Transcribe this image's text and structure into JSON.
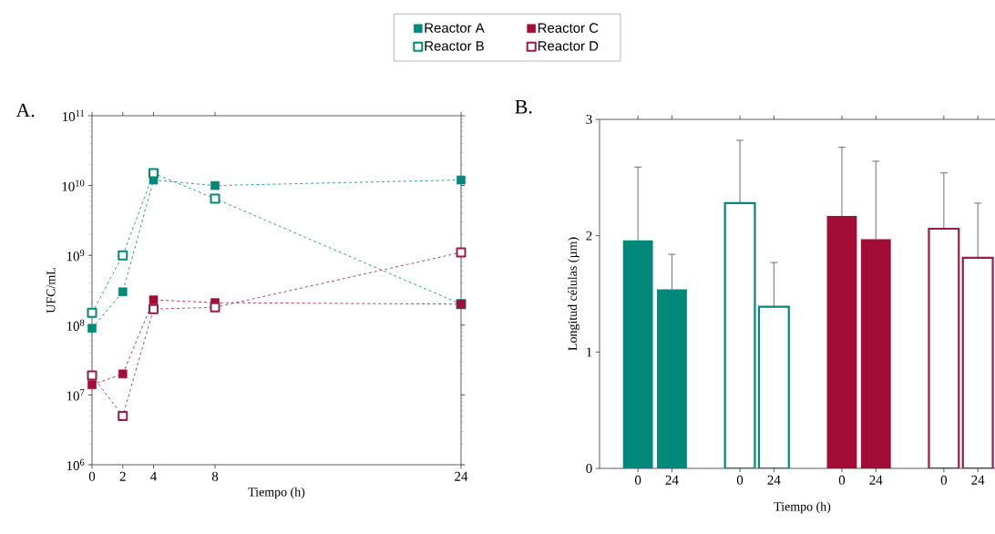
{
  "chart_data": [
    {
      "type": "line",
      "title": "A.",
      "xlabel": "Tiempo (h)",
      "ylabel": "UFC/mL",
      "log": "y",
      "marker": "square",
      "line_style": "dashed",
      "legend": "top",
      "x": [
        0,
        2,
        4,
        8,
        24
      ],
      "xlim": [
        0,
        24
      ],
      "xticks": [
        0,
        2,
        4,
        8,
        24
      ],
      "ylim": [
        1000000,
        100000000000
      ],
      "yticks": [
        {
          "value": 1000000,
          "label": "10$^{6}$"
        },
        {
          "value": 10000000,
          "label": "10$^{7}$"
        },
        {
          "value": 100000000,
          "label": "10$^{8}$"
        },
        {
          "value": 1000000000,
          "label": "10$^{9}$"
        },
        {
          "value": 10000000000,
          "label": "10$^{10}$"
        },
        {
          "value": 100000000000,
          "label": "10$^{11}$"
        }
      ],
      "series": [
        {
          "name": "Reactor A",
          "color": "#00897b",
          "values": [
            90000000,
            300000000,
            12000000000,
            10000000000,
            12000000000
          ]
        },
        {
          "name": "Reactor B",
          "color": "#00897b",
          "values": [
            150000000,
            1000000000,
            15000000000,
            6500000000,
            200000000
          ]
        },
        {
          "name": "Reactor C",
          "color": "#a30c37",
          "values": [
            14000000,
            20000000,
            230000000,
            210000000,
            200000000
          ]
        },
        {
          "name": "Reactor D",
          "color": "#9b1b45",
          "values": [
            19000000,
            5000000,
            170000000,
            180000000,
            1100000000
          ]
        }
      ]
    },
    {
      "type": "bar",
      "title": "B.",
      "xlabel": "Tiempo (h)",
      "ylabel": "Longitud células (µm)",
      "ylim": [
        0,
        3
      ],
      "yticks": [
        0,
        1,
        2,
        3
      ],
      "categories": [
        "0",
        "24",
        null,
        "0",
        "24",
        null,
        "0",
        "24",
        null,
        "0",
        "24"
      ],
      "series": [
        {
          "color": "#00897b",
          "values": [
            1.96,
            1.54,
            null,
            null,
            null,
            null,
            null,
            null,
            null,
            null,
            null
          ],
          "errors": [
            [
              1.96,
              2.59
            ],
            [
              1.54,
              1.84
            ],
            null,
            null,
            null,
            null,
            null,
            null,
            null,
            null,
            null
          ]
        },
        {
          "color": "#00897b",
          "values": [
            null,
            null,
            null,
            2.28,
            1.39,
            null,
            null,
            null,
            null,
            null,
            null
          ],
          "errors": [
            null,
            null,
            null,
            [
              2.28,
              2.82
            ],
            [
              1.39,
              1.77
            ],
            null,
            null,
            null,
            null,
            null,
            null
          ]
        },
        {
          "color": "#a30c37",
          "values": [
            null,
            null,
            null,
            null,
            null,
            null,
            2.17,
            1.97,
            null,
            null,
            null
          ],
          "errors": [
            null,
            null,
            null,
            null,
            null,
            null,
            [
              2.17,
              2.76
            ],
            [
              1.97,
              2.64
            ],
            null,
            null,
            null
          ]
        },
        {
          "color": "#9b1b45",
          "values": [
            null,
            null,
            null,
            null,
            null,
            null,
            null,
            null,
            null,
            2.06,
            1.81
          ],
          "errors": [
            null,
            null,
            null,
            null,
            null,
            null,
            null,
            null,
            null,
            [
              2.06,
              2.54
            ],
            [
              1.81,
              2.28
            ]
          ]
        }
      ]
    }
  ]
}
